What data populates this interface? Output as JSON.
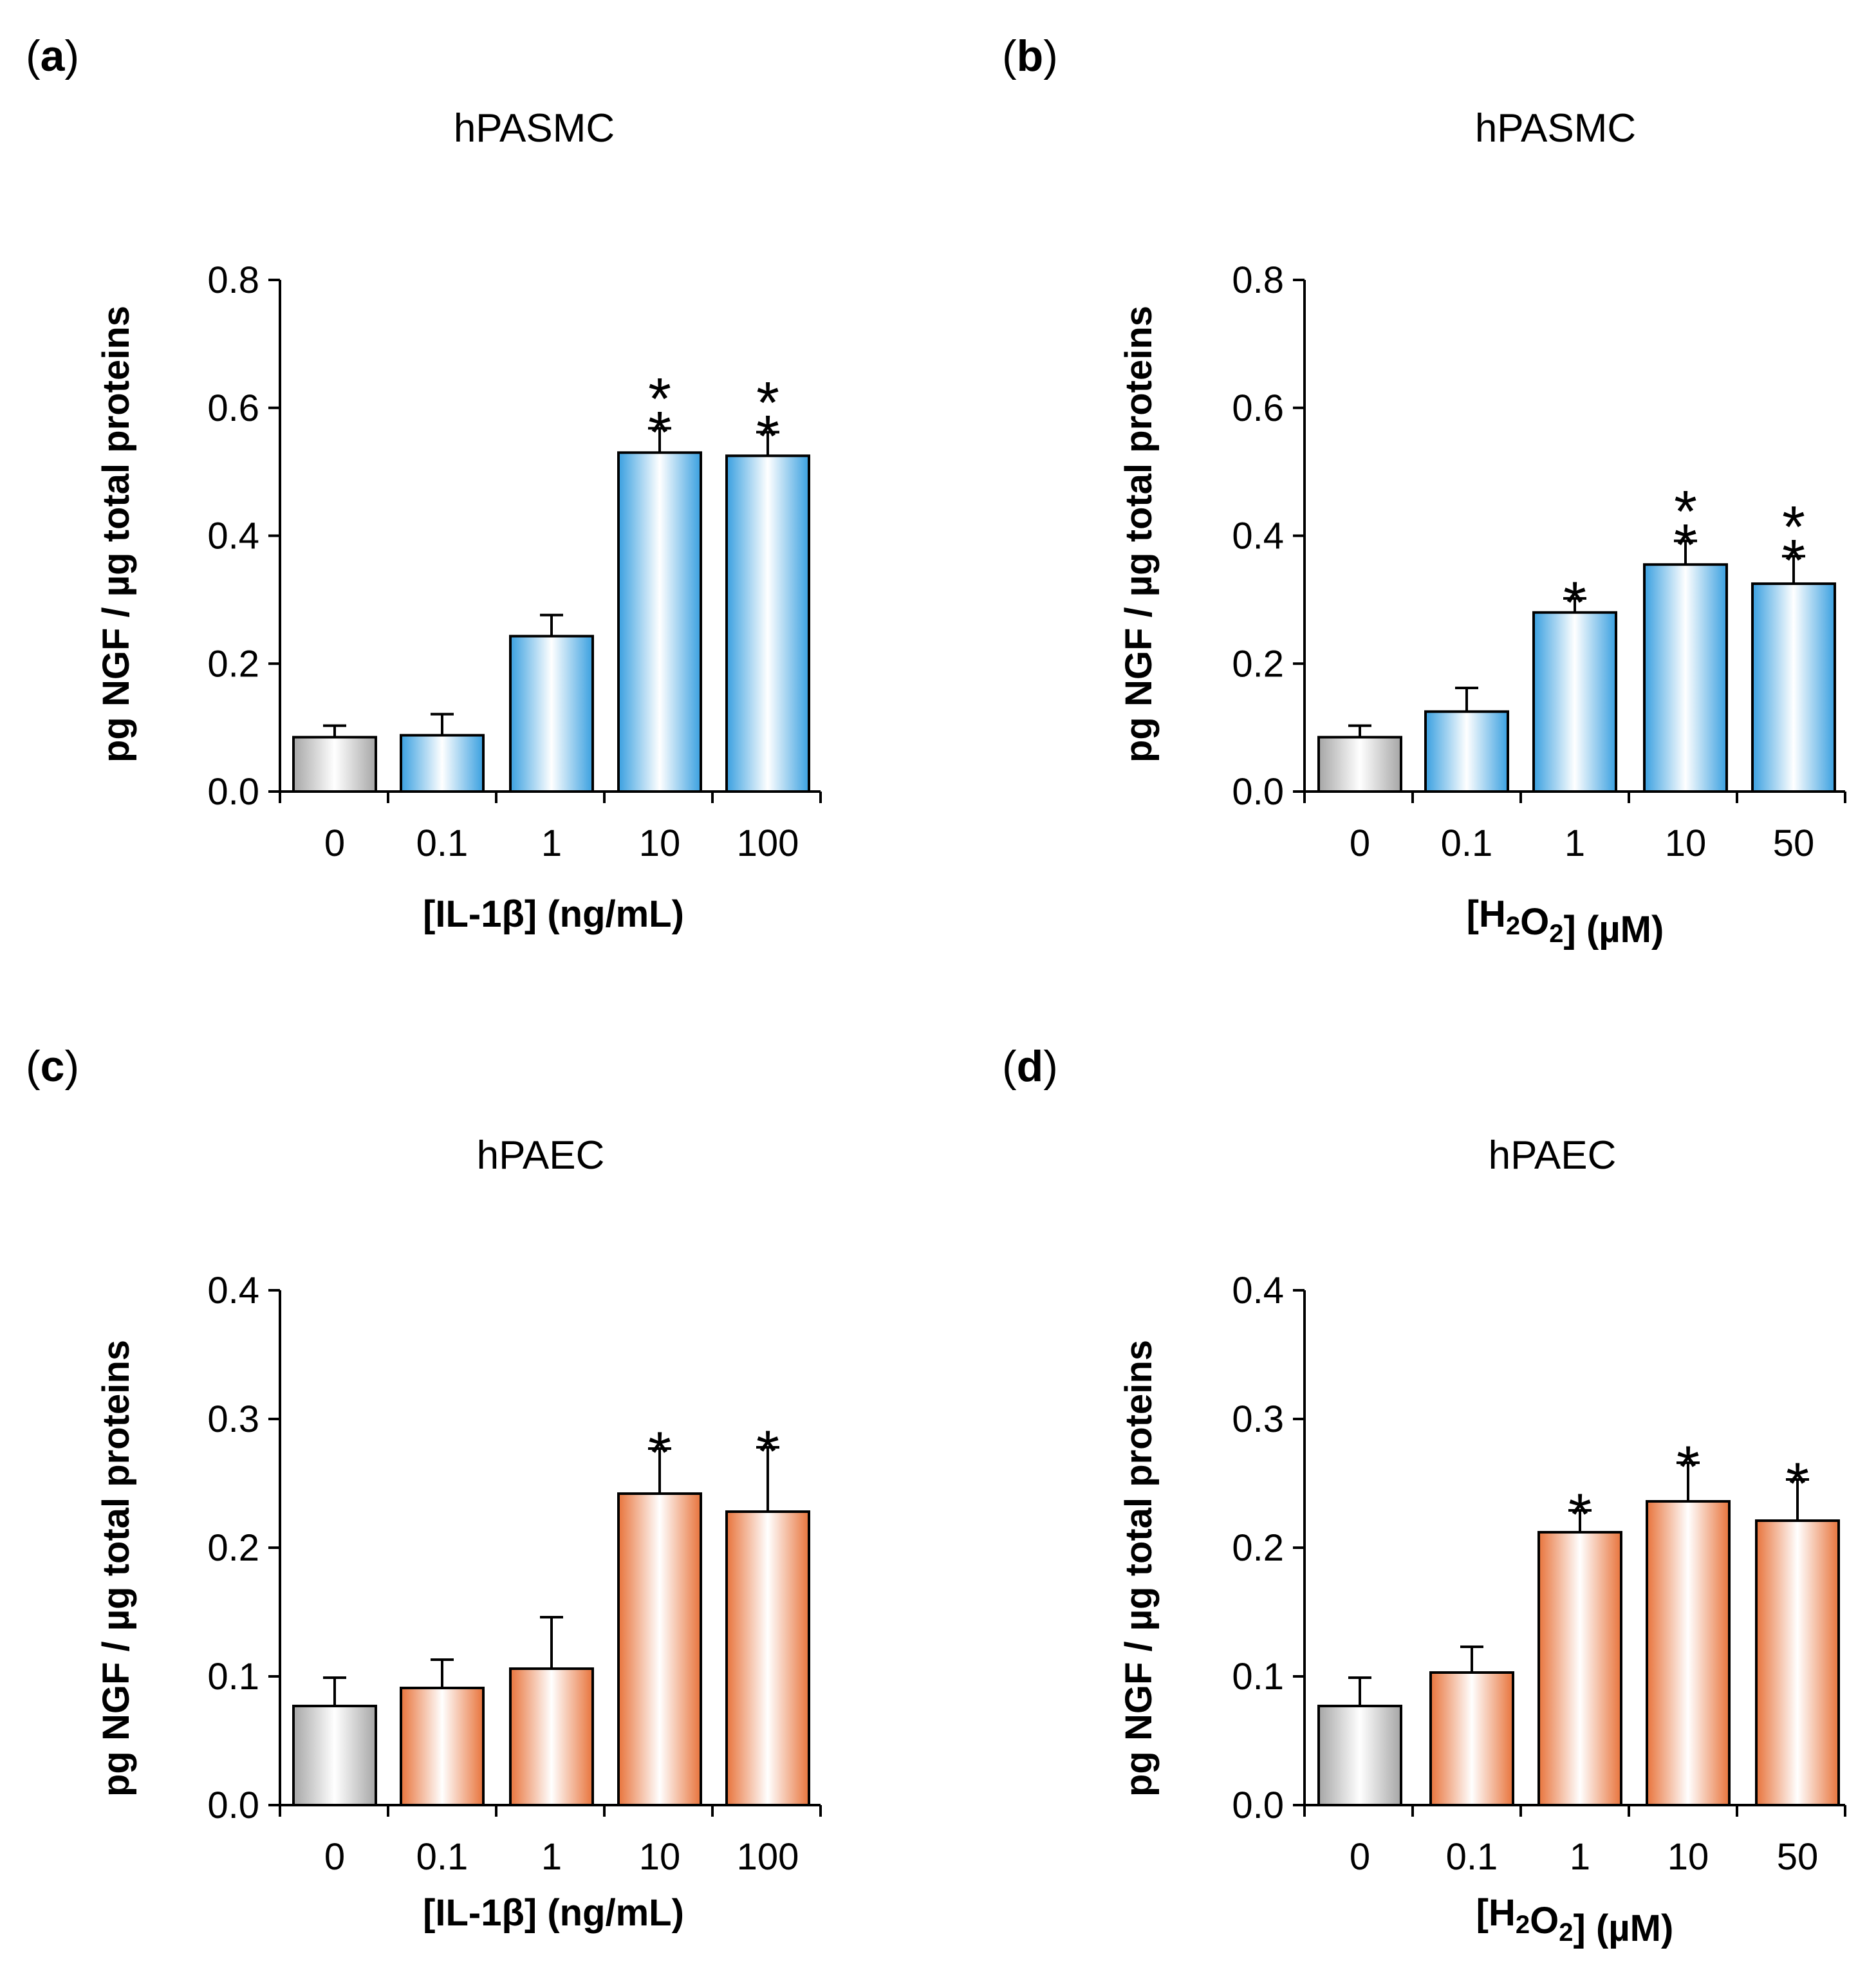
{
  "chart_data": [
    {
      "panel": "(a)",
      "type": "bar",
      "title": "hPASMC",
      "ylabel": "pg NGF / µg total proteins",
      "xlabel": "[IL-1β] (ng/mL)",
      "ylim": [
        0,
        0.8
      ],
      "yticks": [
        "0.0",
        "0.2",
        "0.4",
        "0.6",
        "0.8"
      ],
      "categories": [
        "0",
        "0.1",
        "1",
        "10",
        "100"
      ],
      "values": [
        0.085,
        0.088,
        0.243,
        0.53,
        0.525
      ],
      "errors": [
        0.018,
        0.033,
        0.033,
        0.038,
        0.037
      ],
      "significance": [
        "",
        "",
        "",
        "**",
        "**"
      ],
      "bar_colors": [
        "#a6a6a6",
        "#3aa0e0",
        "#3aa0e0",
        "#3aa0e0",
        "#3aa0e0"
      ]
    },
    {
      "panel": "(b)",
      "type": "bar",
      "title": "hPASMC",
      "ylabel": "pg NGF / µg total proteins",
      "xlabel": "[H2O2] (µM)",
      "ylim": [
        0,
        0.8
      ],
      "yticks": [
        "0.0",
        "0.2",
        "0.4",
        "0.6",
        "0.8"
      ],
      "categories": [
        "0",
        "0.1",
        "1",
        "10",
        "50"
      ],
      "values": [
        0.085,
        0.125,
        0.28,
        0.355,
        0.325
      ],
      "errors": [
        0.018,
        0.037,
        0.022,
        0.037,
        0.043
      ],
      "significance": [
        "",
        "",
        "*",
        "**",
        "**"
      ],
      "bar_colors": [
        "#a6a6a6",
        "#3aa0e0",
        "#3aa0e0",
        "#3aa0e0",
        "#3aa0e0"
      ]
    },
    {
      "panel": "(c)",
      "type": "bar",
      "title": "hPAEC",
      "ylabel": "pg NGF / µg total proteins",
      "xlabel": "[IL-1β] (ng/mL)",
      "ylim": [
        0,
        0.4
      ],
      "yticks": [
        "0.0",
        "0.1",
        "0.2",
        "0.3",
        "0.4"
      ],
      "categories": [
        "0",
        "0.1",
        "1",
        "10",
        "100"
      ],
      "values": [
        0.077,
        0.091,
        0.106,
        0.242,
        0.228
      ],
      "errors": [
        0.022,
        0.022,
        0.04,
        0.035,
        0.05
      ],
      "significance": [
        "",
        "",
        "",
        "*",
        "*"
      ],
      "bar_colors": [
        "#a6a6a6",
        "#e8743c",
        "#e8743c",
        "#e8743c",
        "#e8743c"
      ]
    },
    {
      "panel": "(d)",
      "type": "bar",
      "title": "hPAEC",
      "ylabel": "pg NGF / µg total proteins",
      "xlabel": "[H2O2] (µM)",
      "ylim": [
        0,
        0.4
      ],
      "yticks": [
        "0.0",
        "0.1",
        "0.2",
        "0.3",
        "0.4"
      ],
      "categories": [
        "0",
        "0.1",
        "1",
        "10",
        "50"
      ],
      "values": [
        0.077,
        0.103,
        0.212,
        0.236,
        0.221
      ],
      "errors": [
        0.022,
        0.02,
        0.017,
        0.03,
        0.032
      ],
      "significance": [
        "",
        "",
        "*",
        "*",
        "*"
      ],
      "bar_colors": [
        "#a6a6a6",
        "#e8743c",
        "#e8743c",
        "#e8743c",
        "#e8743c"
      ]
    }
  ]
}
